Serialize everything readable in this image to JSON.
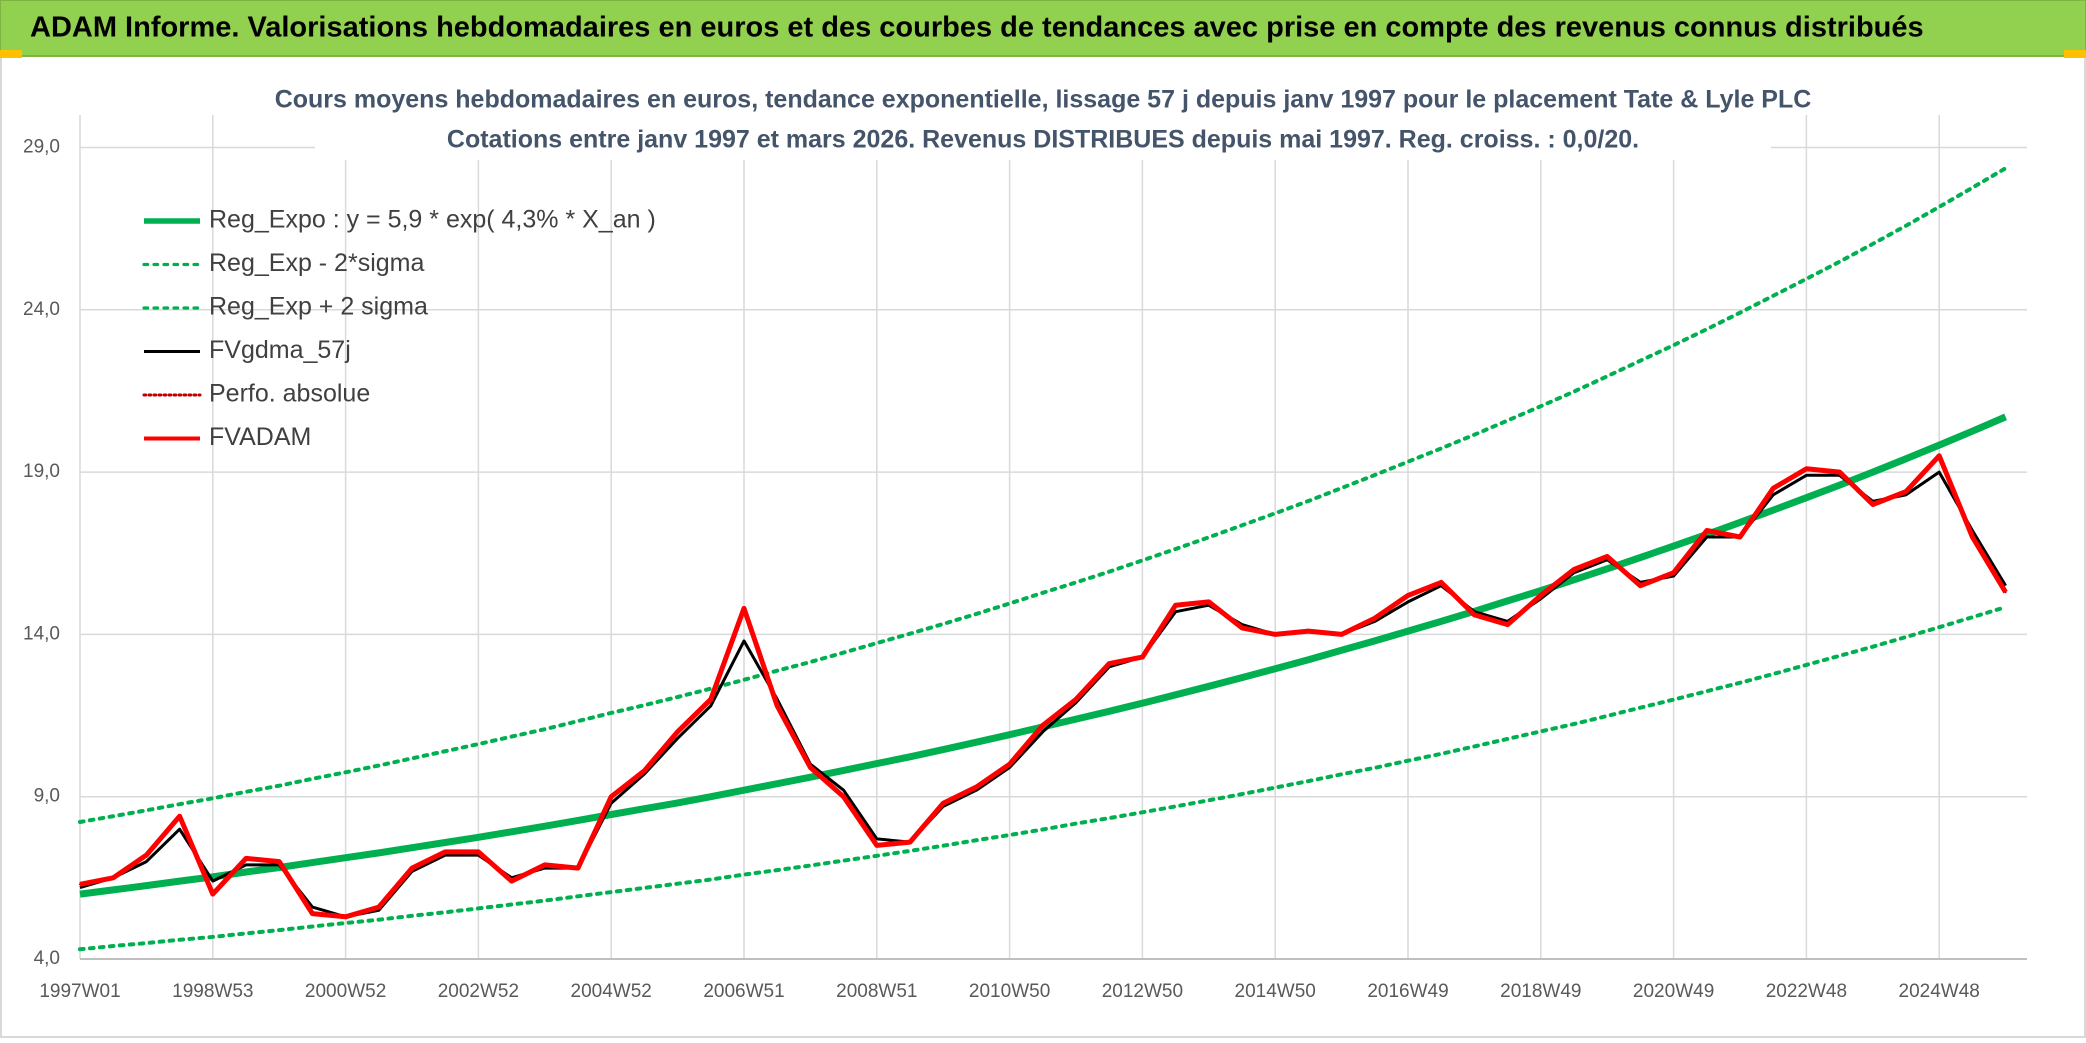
{
  "chart_data": {
    "type": "line",
    "title": "ADAM Informe. Valorisations hebdomadaires en euros et des courbes de tendances avec prise en compte des revenus connus distribués",
    "subtitle": [
      "Cours moyens hebdomadaires en euros, tendance exponentielle, lissage 57 j depuis janv 1997 pour le placement Tate & Lyle PLC",
      "Cotations entre janv 1997 et mars 2026. Revenus DISTRIBUES depuis mai 1997. Reg. croiss. : 0,0/20."
    ],
    "categories": [
      "1997W01",
      null,
      null,
      null,
      "1998W53",
      null,
      null,
      null,
      "2000W52",
      null,
      null,
      null,
      "2002W52",
      null,
      null,
      null,
      "2004W52",
      null,
      null,
      null,
      "2006W51",
      null,
      null,
      null,
      "2008W51",
      null,
      null,
      null,
      "2010W50",
      null,
      null,
      null,
      "2012W50",
      null,
      null,
      null,
      "2014W50",
      null,
      null,
      null,
      "2016W49",
      null,
      null,
      null,
      "2018W49",
      null,
      null,
      null,
      "2020W49",
      null,
      null,
      null,
      "2022W48",
      null,
      null,
      null,
      "2024W48",
      null,
      null
    ],
    "ylim": [
      4,
      30
    ],
    "yticks": [
      {
        "value": 4,
        "label": "4,0"
      },
      {
        "value": 9,
        "label": "9,0"
      },
      {
        "value": 14,
        "label": "14,0"
      },
      {
        "value": 19,
        "label": "19,0"
      },
      {
        "value": 24,
        "label": "24,0"
      },
      {
        "value": 29,
        "label": "29,0"
      }
    ],
    "grid": true,
    "legend": "upper left",
    "series": [
      {
        "name": "Reg_Expo : y = 5,9 * exp( 4,3% *  X_an )",
        "color": "#00b050",
        "dash": "solid",
        "width": 7,
        "values": [
          6.0,
          6.13,
          6.26,
          6.4,
          6.53,
          6.68,
          6.82,
          6.97,
          7.12,
          7.27,
          7.43,
          7.59,
          7.75,
          7.92,
          8.09,
          8.27,
          8.45,
          8.63,
          8.81,
          9.0,
          9.2,
          9.4,
          9.6,
          9.81,
          10.02,
          10.23,
          10.45,
          10.68,
          10.91,
          11.15,
          11.39,
          11.63,
          11.88,
          12.14,
          12.4,
          12.67,
          12.94,
          13.22,
          13.51,
          13.8,
          14.1,
          14.4,
          14.71,
          15.03,
          15.35,
          15.68,
          16.02,
          16.37,
          16.72,
          17.08,
          17.45,
          17.83,
          18.21,
          18.6,
          19.0,
          19.41,
          19.83,
          20.26,
          20.7
        ]
      },
      {
        "name": "Reg_Exp - 2*sigma",
        "color": "#00b050",
        "dash": "dotted",
        "width": 4,
        "values": [
          4.3,
          4.4,
          4.49,
          4.59,
          4.68,
          4.79,
          4.89,
          5.0,
          5.11,
          5.21,
          5.33,
          5.44,
          5.56,
          5.68,
          5.8,
          5.93,
          6.06,
          6.19,
          6.32,
          6.45,
          6.6,
          6.74,
          6.88,
          7.03,
          7.18,
          7.33,
          7.49,
          7.66,
          7.82,
          7.99,
          8.17,
          8.34,
          8.52,
          8.7,
          8.89,
          9.08,
          9.28,
          9.48,
          9.69,
          9.89,
          10.11,
          10.32,
          10.55,
          10.78,
          11.01,
          11.24,
          11.49,
          11.74,
          11.99,
          12.25,
          12.51,
          12.78,
          13.06,
          13.34,
          13.62,
          13.92,
          14.22,
          14.53,
          14.84
        ]
      },
      {
        "name": "Reg_Exp + 2 sigma",
        "color": "#00b050",
        "dash": "dotted",
        "width": 4,
        "values": [
          8.22,
          8.4,
          8.58,
          8.77,
          8.95,
          9.15,
          9.34,
          9.55,
          9.75,
          9.96,
          10.18,
          10.4,
          10.62,
          10.85,
          11.08,
          11.33,
          11.58,
          11.82,
          12.07,
          12.33,
          12.6,
          12.88,
          13.15,
          13.44,
          13.73,
          14.02,
          14.32,
          14.63,
          14.95,
          15.28,
          15.6,
          15.93,
          16.28,
          16.63,
          16.99,
          17.36,
          17.73,
          18.11,
          18.51,
          18.91,
          19.32,
          19.73,
          20.15,
          20.59,
          21.03,
          21.48,
          21.95,
          22.43,
          22.91,
          23.4,
          23.91,
          24.43,
          24.95,
          25.48,
          26.03,
          26.59,
          27.17,
          27.76,
          28.36
        ]
      },
      {
        "name": "FVgdma_57j",
        "color": "#000000",
        "dash": "solid",
        "width": 3,
        "values": [
          6.2,
          6.5,
          7.0,
          8.0,
          6.4,
          6.9,
          6.9,
          5.6,
          5.3,
          5.5,
          6.7,
          7.2,
          7.2,
          6.5,
          6.8,
          6.8,
          8.8,
          9.7,
          10.8,
          11.8,
          13.8,
          12.0,
          10.0,
          9.2,
          7.7,
          7.6,
          8.7,
          9.2,
          9.9,
          11.0,
          11.9,
          13.0,
          13.3,
          14.7,
          14.9,
          14.3,
          14.0,
          14.1,
          14.0,
          14.4,
          15.0,
          15.5,
          14.7,
          14.4,
          15.1,
          15.9,
          16.3,
          15.6,
          15.8,
          17.0,
          17.0,
          18.3,
          18.9,
          18.9,
          18.1,
          18.3,
          19.0,
          17.2,
          15.5
        ]
      },
      {
        "name": "Perfo. absolue",
        "color": "#c00000",
        "dash": "dotted",
        "width": 2,
        "values": [
          6.3,
          6.5,
          7.2,
          8.4,
          6.0,
          7.1,
          7.0,
          5.4,
          5.3,
          5.6,
          6.8,
          7.3,
          7.3,
          6.4,
          6.9,
          6.8,
          9.0,
          9.8,
          11.0,
          12.0,
          14.8,
          11.8,
          9.9,
          9.0,
          7.5,
          7.6,
          8.8,
          9.3,
          10.0,
          11.2,
          12.0,
          13.1,
          13.3,
          14.9,
          15.0,
          14.2,
          14.0,
          14.1,
          14.0,
          14.5,
          15.2,
          15.6,
          14.6,
          14.3,
          15.2,
          16.0,
          16.4,
          15.5,
          15.9,
          17.2,
          17.0,
          18.5,
          19.1,
          19.0,
          18.0,
          18.4,
          19.5,
          17.0,
          15.3
        ]
      },
      {
        "name": "FVADAM",
        "color": "#ff0000",
        "dash": "solid",
        "width": 5,
        "values": [
          6.3,
          6.5,
          7.2,
          8.4,
          6.0,
          7.1,
          7.0,
          5.4,
          5.3,
          5.6,
          6.8,
          7.3,
          7.3,
          6.4,
          6.9,
          6.8,
          9.0,
          9.8,
          11.0,
          12.0,
          14.8,
          11.8,
          9.9,
          9.0,
          7.5,
          7.6,
          8.8,
          9.3,
          10.0,
          11.2,
          12.0,
          13.1,
          13.3,
          14.9,
          15.0,
          14.2,
          14.0,
          14.1,
          14.0,
          14.5,
          15.2,
          15.6,
          14.6,
          14.3,
          15.2,
          16.0,
          16.4,
          15.5,
          15.9,
          17.2,
          17.0,
          18.5,
          19.1,
          19.0,
          18.0,
          18.4,
          19.5,
          17.0,
          15.3
        ]
      }
    ]
  }
}
